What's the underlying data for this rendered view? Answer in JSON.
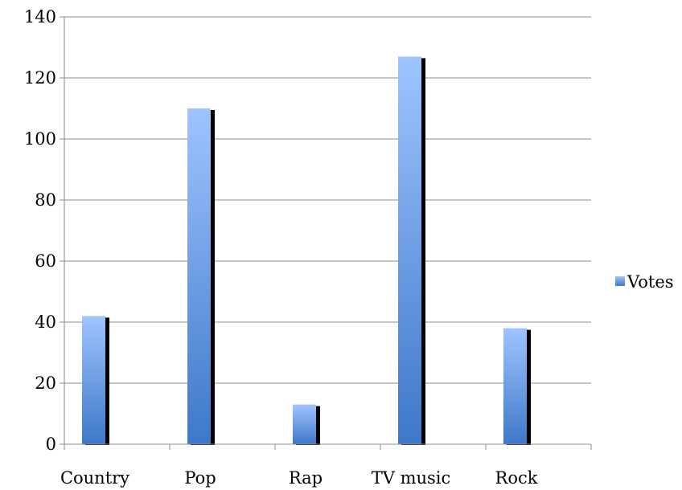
{
  "chart_data": {
    "type": "bar",
    "categories": [
      "Country",
      "Pop",
      "Rap",
      "TV music",
      "Rock"
    ],
    "series": [
      {
        "name": "Votes",
        "values": [
          42,
          110,
          13,
          127,
          38
        ],
        "color": "#4a82d0"
      }
    ],
    "yticks": [
      "0",
      "20",
      "40",
      "60",
      "80",
      "100",
      "120",
      "140"
    ],
    "ylim": [
      0,
      140
    ],
    "grid": true,
    "legend": "right",
    "colors": {
      "bar_top": "#9fc4ff",
      "bar_bottom": "#3d78c8",
      "shadow": "#000000",
      "grid": "#8c8c8c"
    }
  }
}
